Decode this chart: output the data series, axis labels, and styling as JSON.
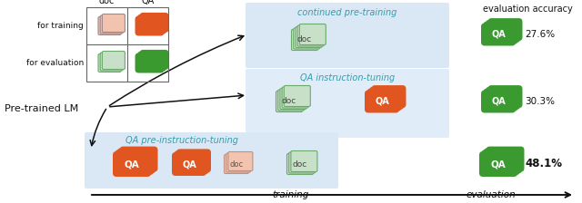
{
  "bg_color": "#ffffff",
  "doc_color_peach": "#f2c4b0",
  "doc_color_lightgreen": "#c8e0c8",
  "doc_border_gray": "#8a9e8a",
  "doc_border_green": "#6aaa6a",
  "qa_color_orange": "#e05520",
  "qa_color_green": "#3a9a30",
  "panel_blue": "#dae8f5",
  "panel_blue2": "#e0ecf8",
  "grid_color": "#666666",
  "arrow_color": "#111111",
  "cyan_label": "#3a9aaa",
  "text_color": "#111111",
  "accuracy_27": "27.6%",
  "accuracy_30": "30.3%",
  "accuracy_48": "48.1%",
  "row1_label": "for training",
  "row2_label": "for evaluation",
  "pretrained_label": "Pre-trained LM",
  "col1_label": "doc",
  "col2_label": "QA",
  "section1_label": "continued pre-training",
  "section2_label": "QA instruction-tuning",
  "section3_label": "QA pre-instruction-tuning",
  "training_label": "training",
  "evaluation_label": "evaluation",
  "eval_acc_label": "evaluation accuracy"
}
